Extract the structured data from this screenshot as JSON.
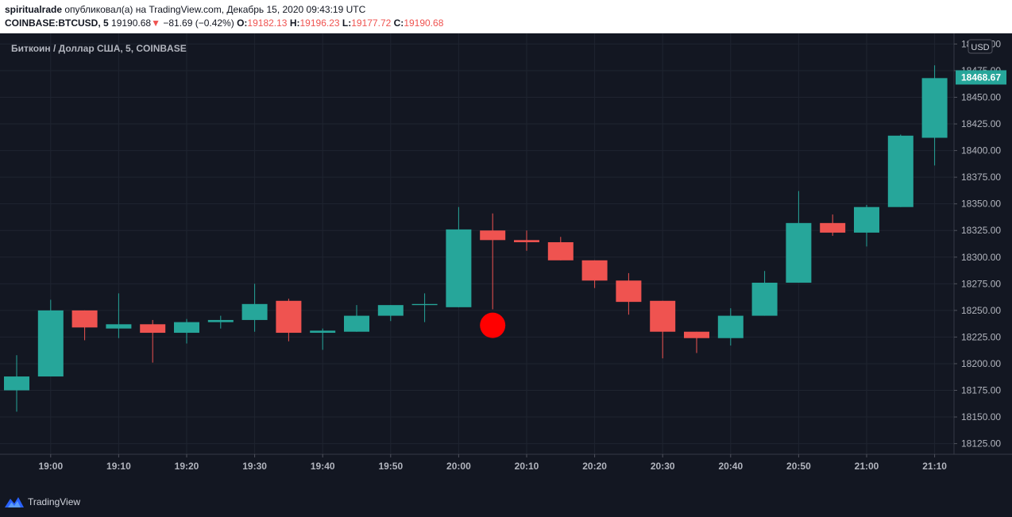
{
  "header": {
    "author": "spiritualrade",
    "published_text": "опубликовал(а) на TradingView.com, Декабрь 15, 2020 09:43:19 UTC",
    "symbol": "COINBASE:BTCUSD, 5",
    "price": "19190.68",
    "change": "−81.69 (−0.42%)",
    "o_label": "O:",
    "o_value": "19182.13",
    "h_label": "H:",
    "h_value": "19196.23",
    "l_label": "L:",
    "l_value": "19177.72",
    "c_label": "C:",
    "c_value": "19190.68"
  },
  "footer": {
    "brand": "TradingView"
  },
  "colors": {
    "up": "#26a69a",
    "down": "#ef5350",
    "marker": "#ff0000",
    "background": "#131722",
    "grid": "#1f2430",
    "text": "#b2b5be"
  },
  "chart_data": {
    "type": "candlestick",
    "title": "Биткоин / Доллар США, 5, COINBASE",
    "currency_label": "USD",
    "last_price_label": "18468.67",
    "interval_minutes": 5,
    "ylim": [
      18115,
      18510
    ],
    "y_ticks": [
      18125,
      18150,
      18175,
      18200,
      18225,
      18250,
      18275,
      18300,
      18325,
      18350,
      18375,
      18400,
      18425,
      18450,
      18475,
      18500
    ],
    "x_ticks": [
      "19:00",
      "19:10",
      "19:20",
      "19:30",
      "19:40",
      "19:50",
      "20:00",
      "20:10",
      "20:20",
      "20:30",
      "20:40",
      "20:50",
      "21:00",
      "21:10"
    ],
    "first_candle_time": "18:55",
    "candles": [
      {
        "time": "18:55",
        "open": 18175,
        "high": 18208,
        "low": 18155,
        "close": 18188
      },
      {
        "time": "19:00",
        "open": 18188,
        "high": 18260,
        "low": 18188,
        "close": 18250
      },
      {
        "time": "19:05",
        "open": 18250,
        "high": 18250,
        "low": 18222,
        "close": 18234
      },
      {
        "time": "19:10",
        "open": 18233,
        "high": 18266,
        "low": 18224,
        "close": 18237
      },
      {
        "time": "19:15",
        "open": 18237,
        "high": 18241,
        "low": 18201,
        "close": 18229
      },
      {
        "time": "19:20",
        "open": 18229,
        "high": 18242,
        "low": 18219,
        "close": 18239
      },
      {
        "time": "19:25",
        "open": 18239,
        "high": 18245,
        "low": 18233,
        "close": 18241
      },
      {
        "time": "19:30",
        "open": 18241,
        "high": 18275,
        "low": 18230,
        "close": 18256
      },
      {
        "time": "19:35",
        "open": 18259,
        "high": 18261,
        "low": 18221,
        "close": 18229
      },
      {
        "time": "19:40",
        "open": 18229,
        "high": 18233,
        "low": 18213,
        "close": 18231
      },
      {
        "time": "19:45",
        "open": 18230,
        "high": 18255,
        "low": 18230,
        "close": 18245
      },
      {
        "time": "19:50",
        "open": 18245,
        "high": 18255,
        "low": 18240,
        "close": 18255
      },
      {
        "time": "19:55",
        "open": 18255,
        "high": 18266,
        "low": 18239,
        "close": 18256
      },
      {
        "time": "20:00",
        "open": 18253,
        "high": 18347,
        "low": 18253,
        "close": 18326
      },
      {
        "time": "20:05",
        "open": 18325,
        "high": 18341,
        "low": 18251,
        "close": 18316
      },
      {
        "time": "20:10",
        "open": 18316,
        "high": 18325,
        "low": 18306,
        "close": 18314
      },
      {
        "time": "20:15",
        "open": 18314,
        "high": 18319,
        "low": 18297,
        "close": 18297
      },
      {
        "time": "20:20",
        "open": 18297,
        "high": 18297,
        "low": 18271,
        "close": 18278
      },
      {
        "time": "20:25",
        "open": 18278,
        "high": 18285,
        "low": 18246,
        "close": 18258
      },
      {
        "time": "20:30",
        "open": 18259,
        "high": 18259,
        "low": 18205,
        "close": 18230
      },
      {
        "time": "20:35",
        "open": 18230,
        "high": 18230,
        "low": 18210,
        "close": 18224
      },
      {
        "time": "20:40",
        "open": 18224,
        "high": 18252,
        "low": 18217,
        "close": 18245
      },
      {
        "time": "20:45",
        "open": 18245,
        "high": 18287,
        "low": 18245,
        "close": 18276
      },
      {
        "time": "20:50",
        "open": 18276,
        "high": 18362,
        "low": 18276,
        "close": 18332
      },
      {
        "time": "20:55",
        "open": 18332,
        "high": 18340,
        "low": 18320,
        "close": 18323
      },
      {
        "time": "21:00",
        "open": 18323,
        "high": 18349,
        "low": 18310,
        "close": 18347
      },
      {
        "time": "21:05",
        "open": 18347,
        "high": 18415,
        "low": 18347,
        "close": 18414
      },
      {
        "time": "21:10",
        "open": 18412,
        "high": 18480,
        "low": 18386,
        "close": 18468
      }
    ],
    "marker": {
      "time": "20:05",
      "price": 18236
    }
  }
}
